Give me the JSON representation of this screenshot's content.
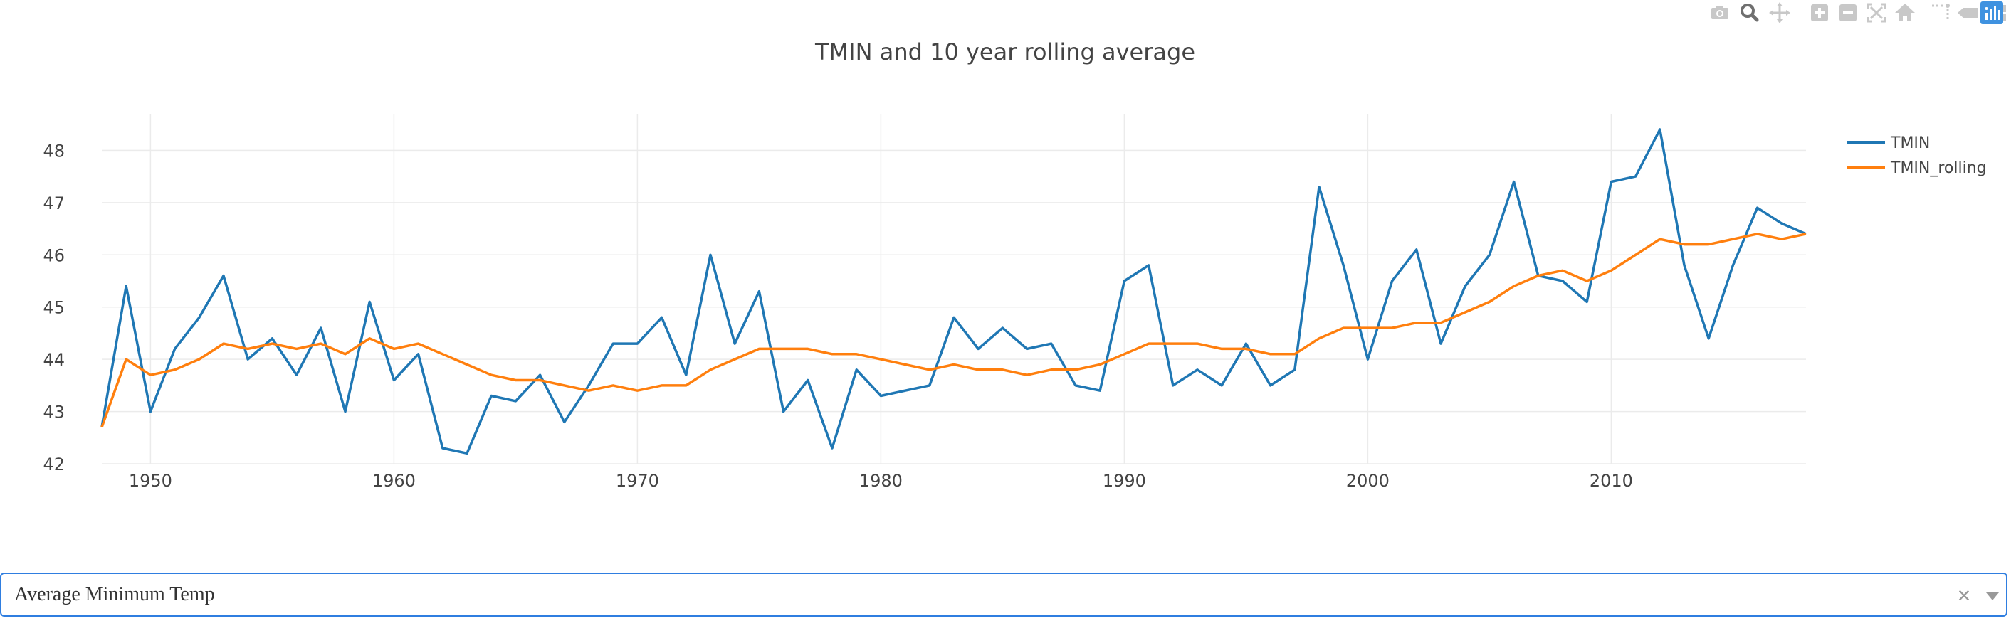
{
  "chart_data": {
    "type": "line",
    "title": "TMIN and 10 year rolling average",
    "xlabel": "",
    "ylabel": "",
    "xlim": [
      1948,
      2018
    ],
    "ylim": [
      42,
      48.7
    ],
    "x_ticks": [
      1950,
      1960,
      1970,
      1980,
      1990,
      2000,
      2010
    ],
    "y_ticks": [
      42,
      43,
      44,
      45,
      46,
      47,
      48
    ],
    "grid": true,
    "legend_position": "top-right",
    "x": [
      1948,
      1949,
      1950,
      1951,
      1952,
      1953,
      1954,
      1955,
      1956,
      1957,
      1958,
      1959,
      1960,
      1961,
      1962,
      1963,
      1964,
      1965,
      1966,
      1967,
      1968,
      1969,
      1970,
      1971,
      1972,
      1973,
      1974,
      1975,
      1976,
      1977,
      1978,
      1979,
      1980,
      1981,
      1982,
      1983,
      1984,
      1985,
      1986,
      1987,
      1988,
      1989,
      1990,
      1991,
      1992,
      1993,
      1994,
      1995,
      1996,
      1997,
      1998,
      1999,
      2000,
      2001,
      2002,
      2003,
      2004,
      2005,
      2006,
      2007,
      2008,
      2009,
      2010,
      2011,
      2012,
      2013,
      2014,
      2015,
      2016,
      2017,
      2018
    ],
    "series": [
      {
        "name": "TMIN",
        "color": "#1f77b4",
        "values": [
          42.7,
          45.4,
          43.0,
          44.2,
          44.8,
          45.6,
          44.0,
          44.4,
          43.7,
          44.6,
          43.0,
          45.1,
          43.6,
          44.1,
          42.3,
          42.2,
          43.3,
          43.2,
          43.7,
          42.8,
          43.5,
          44.3,
          44.3,
          44.8,
          43.7,
          46.0,
          44.3,
          45.3,
          43.0,
          43.6,
          42.3,
          43.8,
          43.3,
          43.4,
          43.5,
          44.8,
          44.2,
          44.6,
          44.2,
          44.3,
          43.5,
          43.4,
          45.5,
          45.8,
          43.5,
          43.8,
          43.5,
          44.3,
          43.5,
          43.8,
          47.3,
          45.8,
          44.0,
          45.5,
          46.1,
          44.3,
          45.4,
          46.0,
          47.4,
          45.6,
          45.5,
          45.1,
          47.4,
          47.5,
          48.4,
          45.8,
          44.4,
          45.8,
          46.9,
          46.6,
          46.4
        ]
      },
      {
        "name": "TMIN_rolling",
        "color": "#ff7f0e",
        "values": [
          42.7,
          44.0,
          43.7,
          43.8,
          44.0,
          44.3,
          44.2,
          44.3,
          44.2,
          44.3,
          44.1,
          44.4,
          44.2,
          44.3,
          44.1,
          43.9,
          43.7,
          43.6,
          43.6,
          43.5,
          43.4,
          43.5,
          43.4,
          43.5,
          43.5,
          43.8,
          44.0,
          44.2,
          44.2,
          44.2,
          44.1,
          44.1,
          44.0,
          43.9,
          43.8,
          43.9,
          43.8,
          43.8,
          43.7,
          43.8,
          43.8,
          43.9,
          44.1,
          44.3,
          44.3,
          44.3,
          44.2,
          44.2,
          44.1,
          44.1,
          44.4,
          44.6,
          44.6,
          44.6,
          44.7,
          44.7,
          44.9,
          45.1,
          45.4,
          45.6,
          45.7,
          45.5,
          45.7,
          46.0,
          46.3,
          46.2,
          46.2,
          46.3,
          46.4,
          46.3,
          46.4
        ]
      }
    ]
  },
  "modebar": {
    "buttons": [
      {
        "name": "camera-icon",
        "title": "Download plot as a png"
      },
      {
        "name": "zoom-icon",
        "title": "Zoom"
      },
      {
        "name": "pan-icon",
        "title": "Pan"
      },
      {
        "name": "zoom-in-icon",
        "title": "Zoom in"
      },
      {
        "name": "zoom-out-icon",
        "title": "Zoom out"
      },
      {
        "name": "autoscale-icon",
        "title": "Autoscale"
      },
      {
        "name": "home-icon",
        "title": "Reset axes"
      },
      {
        "name": "spike-lines-icon",
        "title": "Toggle Spike Lines"
      },
      {
        "name": "hover-closest-icon",
        "title": "Show closest data on hover"
      },
      {
        "name": "hover-compare-icon",
        "title": "Compare data on hover"
      },
      {
        "name": "plotly-logo-icon",
        "title": "Produced with Plotly"
      }
    ]
  },
  "dropdown": {
    "value": "Average Minimum Temp",
    "clear_glyph": "×"
  }
}
